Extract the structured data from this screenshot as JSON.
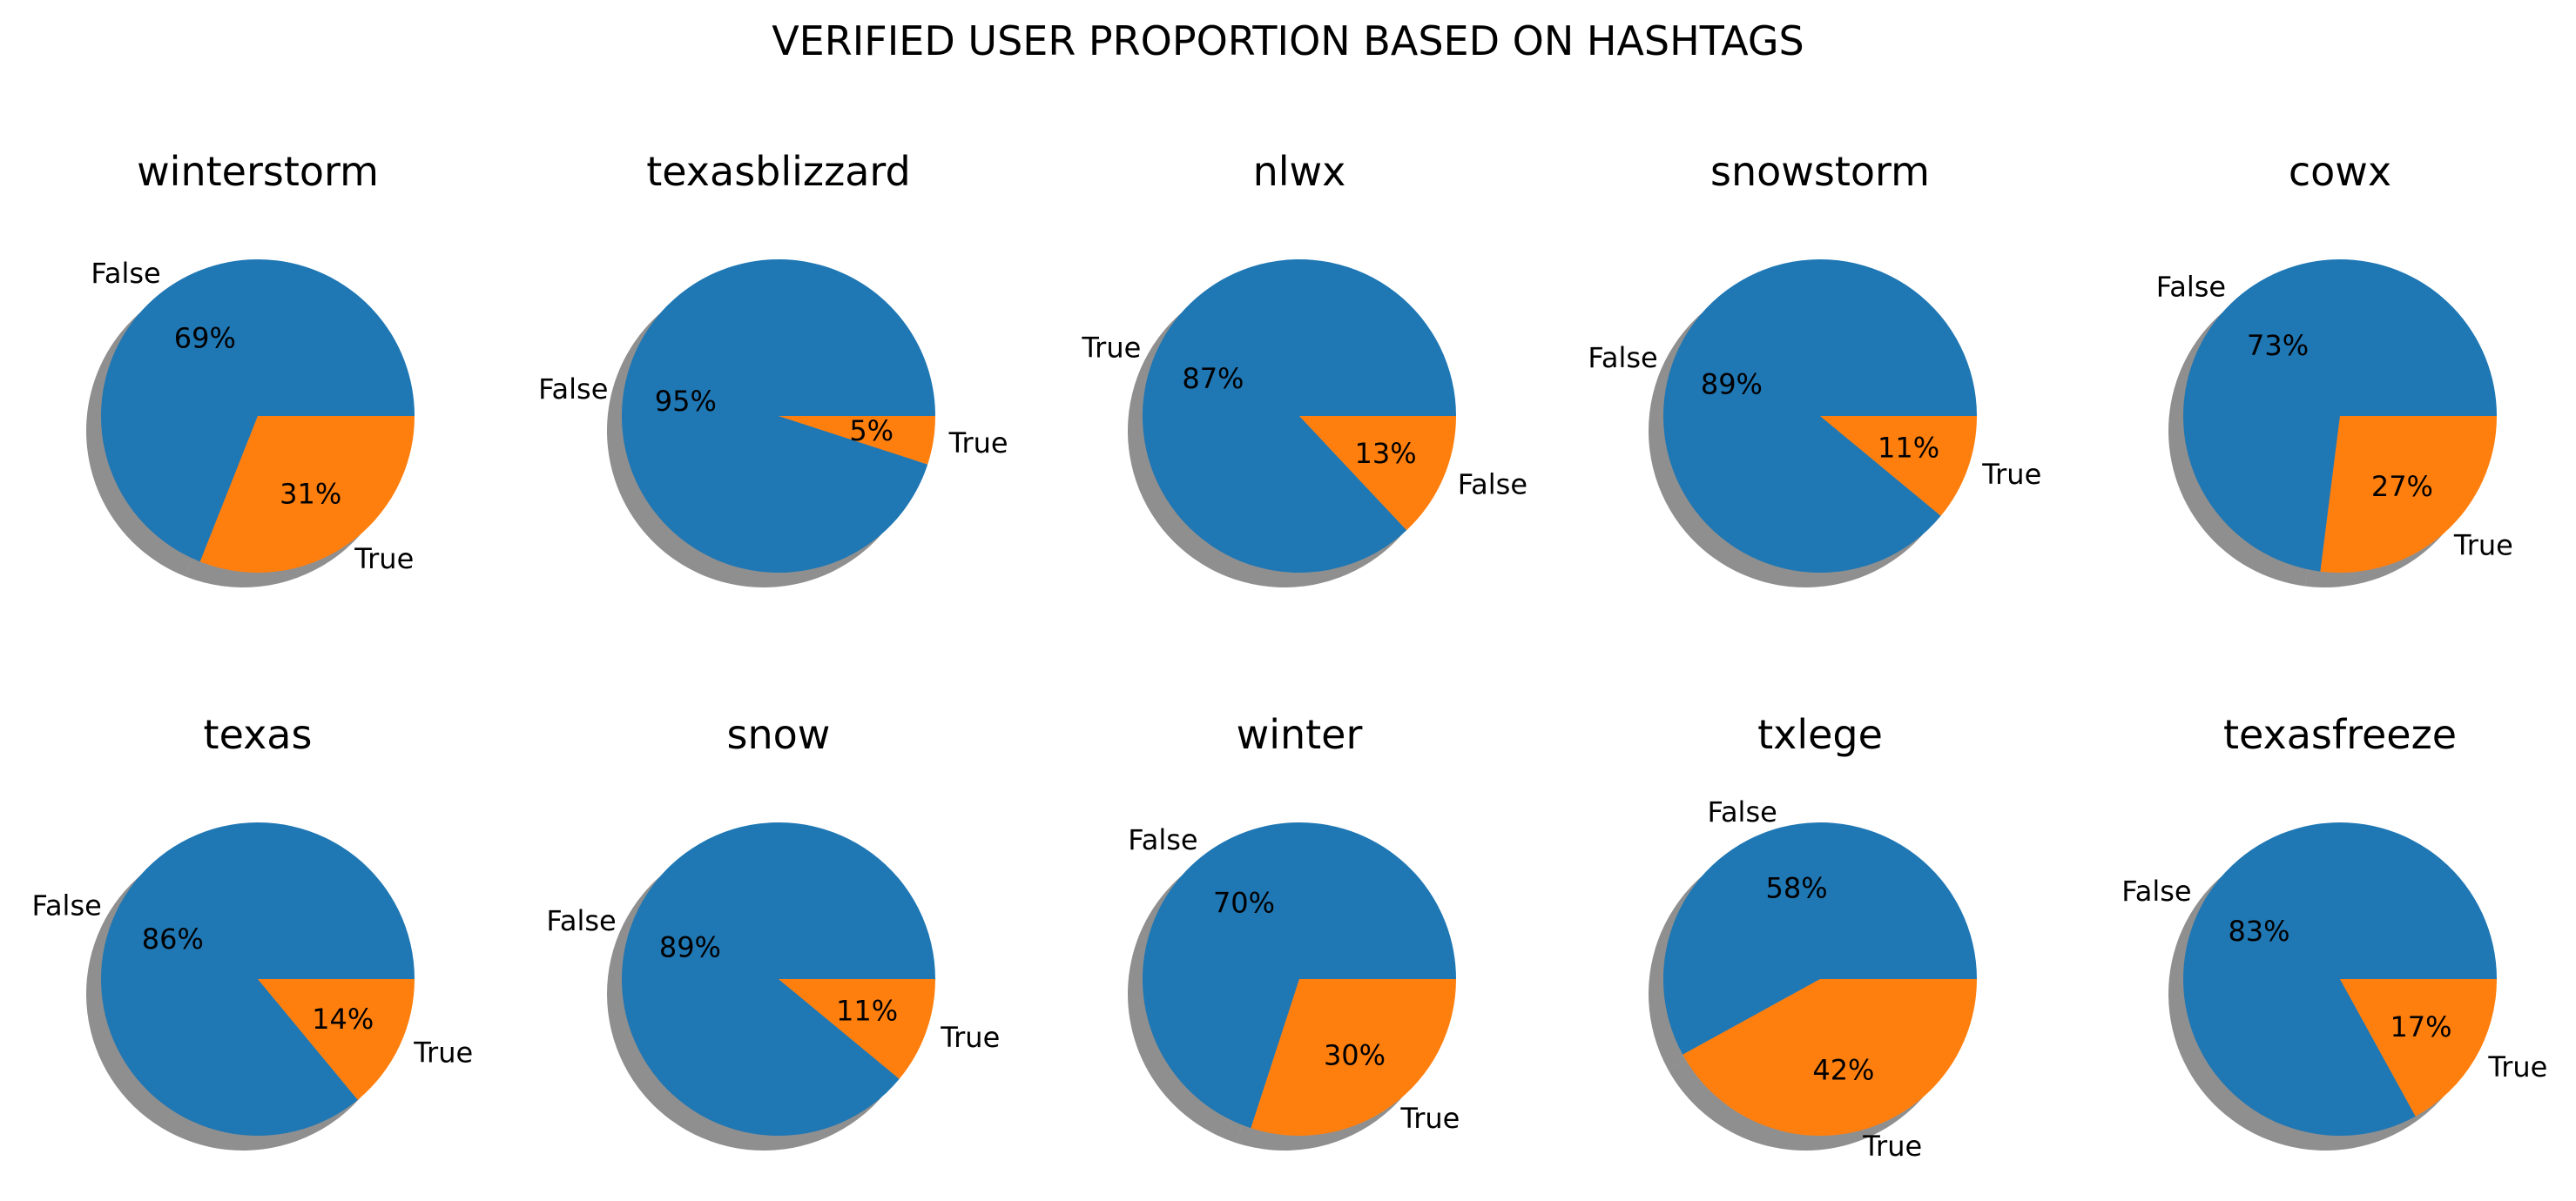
{
  "title": "VERIFIED USER PROPORTION BASED ON HASHTAGS",
  "colors": {
    "first": "#1f77b4",
    "second": "#ff7f0e",
    "shadow": "#333333"
  },
  "chart_data": [
    {
      "type": "pie",
      "title": "winterstorm",
      "labels": [
        "False",
        "True"
      ],
      "values": [
        69,
        31
      ],
      "autopct": [
        "69%",
        "31%"
      ]
    },
    {
      "type": "pie",
      "title": "texasblizzard",
      "labels": [
        "False",
        "True"
      ],
      "values": [
        95,
        5
      ],
      "autopct": [
        "95%",
        "5%"
      ]
    },
    {
      "type": "pie",
      "title": "nlwx",
      "labels": [
        "True",
        "False"
      ],
      "values": [
        87,
        13
      ],
      "autopct": [
        "87%",
        "13%"
      ]
    },
    {
      "type": "pie",
      "title": "snowstorm",
      "labels": [
        "False",
        "True"
      ],
      "values": [
        89,
        11
      ],
      "autopct": [
        "89%",
        "11%"
      ]
    },
    {
      "type": "pie",
      "title": "cowx",
      "labels": [
        "False",
        "True"
      ],
      "values": [
        73,
        27
      ],
      "autopct": [
        "73%",
        "27%"
      ]
    },
    {
      "type": "pie",
      "title": "texas",
      "labels": [
        "False",
        "True"
      ],
      "values": [
        86,
        14
      ],
      "autopct": [
        "86%",
        "14%"
      ]
    },
    {
      "type": "pie",
      "title": "snow",
      "labels": [
        "False",
        "True"
      ],
      "values": [
        89,
        11
      ],
      "autopct": [
        "89%",
        "11%"
      ]
    },
    {
      "type": "pie",
      "title": "winter",
      "labels": [
        "False",
        "True"
      ],
      "values": [
        70,
        30
      ],
      "autopct": [
        "70%",
        "30%"
      ]
    },
    {
      "type": "pie",
      "title": "txlege",
      "labels": [
        "False",
        "True"
      ],
      "values": [
        58,
        42
      ],
      "autopct": [
        "58%",
        "42%"
      ]
    },
    {
      "type": "pie",
      "title": "texasfreeze",
      "labels": [
        "False",
        "True"
      ],
      "values": [
        83,
        17
      ],
      "autopct": [
        "83%",
        "17%"
      ]
    }
  ]
}
